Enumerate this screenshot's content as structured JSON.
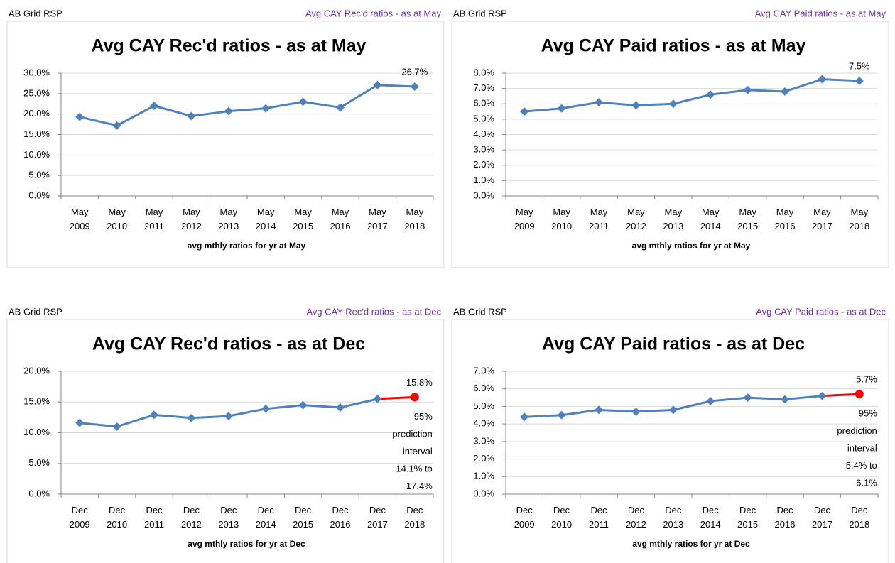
{
  "chart_data": [
    {
      "type": "line",
      "header_left": "AB Grid RSP",
      "header_right": "Avg CAY Rec'd ratios - as at May",
      "title": "Avg CAY Rec'd ratios - as at May",
      "x_label": "avg mthly ratios for yr at May",
      "categories": [
        "May 2009",
        "May 2010",
        "May 2011",
        "May 2012",
        "May 2013",
        "May 2014",
        "May 2015",
        "May 2016",
        "May 2017",
        "May 2018"
      ],
      "values": [
        19.3,
        17.2,
        22.0,
        19.5,
        20.7,
        21.4,
        23.0,
        21.6,
        27.1,
        26.7
      ],
      "value_labels": [
        null,
        null,
        null,
        null,
        null,
        null,
        null,
        null,
        null,
        "26.7%"
      ],
      "color": "#4f81bd",
      "ylim": [
        0,
        30
      ],
      "grid": true,
      "yticks": [
        {
          "value": 0,
          "label": "0.0%"
        },
        {
          "value": 5,
          "label": "5.0%"
        },
        {
          "value": 10,
          "label": "10.0%"
        },
        {
          "value": 15,
          "label": "15.0%"
        },
        {
          "value": 20,
          "label": "20.0%"
        },
        {
          "value": 25,
          "label": "25.0%"
        },
        {
          "value": 30,
          "label": "30.0%"
        }
      ]
    },
    {
      "type": "line",
      "header_left": "AB Grid RSP",
      "header_right": "Avg CAY Paid ratios - as at May",
      "title": "Avg CAY Paid ratios - as at May",
      "x_label": "avg mthly ratios for yr at May",
      "categories": [
        "May 2009",
        "May 2010",
        "May 2011",
        "May 2012",
        "May 2013",
        "May 2014",
        "May 2015",
        "May 2016",
        "May 2017",
        "May 2018"
      ],
      "values": [
        5.5,
        5.7,
        6.1,
        5.9,
        6.0,
        6.6,
        6.9,
        6.8,
        7.6,
        7.5
      ],
      "value_labels": [
        null,
        null,
        null,
        null,
        null,
        null,
        null,
        null,
        null,
        "7.5%"
      ],
      "color": "#4f81bd",
      "ylim": [
        0,
        8
      ],
      "grid": true,
      "yticks": [
        {
          "value": 0,
          "label": "0.0%"
        },
        {
          "value": 1,
          "label": "1.0%"
        },
        {
          "value": 2,
          "label": "2.0%"
        },
        {
          "value": 3,
          "label": "3.0%"
        },
        {
          "value": 4,
          "label": "4.0%"
        },
        {
          "value": 5,
          "label": "5.0%"
        },
        {
          "value": 6,
          "label": "6.0%"
        },
        {
          "value": 7,
          "label": "7.0%"
        },
        {
          "value": 8,
          "label": "8.0%"
        }
      ]
    },
    {
      "type": "line",
      "header_left": "AB Grid RSP",
      "header_right": "Avg CAY Rec'd ratios - as at Dec",
      "title": "Avg CAY Rec'd ratios - as at Dec",
      "x_label": "avg mthly ratios for yr at Dec",
      "categories": [
        "Dec 2009",
        "Dec 2010",
        "Dec 2011",
        "Dec 2012",
        "Dec 2013",
        "Dec 2014",
        "Dec 2015",
        "Dec 2016",
        "Dec 2017",
        "Dec 2018"
      ],
      "values": [
        11.6,
        11.0,
        12.9,
        12.4,
        12.7,
        13.9,
        14.5,
        14.1,
        15.5,
        15.8
      ],
      "value_labels": [
        null,
        null,
        null,
        null,
        null,
        null,
        null,
        null,
        null,
        "15.8%"
      ],
      "color": "#4f81bd",
      "last_color": "#ff0000",
      "ylim": [
        0,
        20
      ],
      "grid": true,
      "annotation": [
        "95%",
        "prediction",
        "interval",
        "14.1% to",
        "17.4%"
      ],
      "yticks": [
        {
          "value": 0,
          "label": "0.0%"
        },
        {
          "value": 5,
          "label": "5.0%"
        },
        {
          "value": 10,
          "label": "10.0%"
        },
        {
          "value": 15,
          "label": "15.0%"
        },
        {
          "value": 20,
          "label": "20.0%"
        }
      ]
    },
    {
      "type": "line",
      "header_left": "AB Grid RSP",
      "header_right": "Avg CAY Paid ratios - as at Dec",
      "title": "Avg CAY Paid ratios - as at Dec",
      "x_label": "avg mthly ratios for yr at Dec",
      "categories": [
        "Dec 2009",
        "Dec 2010",
        "Dec 2011",
        "Dec 2012",
        "Dec 2013",
        "Dec 2014",
        "Dec 2015",
        "Dec 2016",
        "Dec 2017",
        "Dec 2018"
      ],
      "values": [
        4.4,
        4.5,
        4.8,
        4.7,
        4.8,
        5.3,
        5.5,
        5.4,
        5.6,
        5.7
      ],
      "value_labels": [
        null,
        null,
        null,
        null,
        null,
        null,
        null,
        null,
        null,
        "5.7%"
      ],
      "color": "#4f81bd",
      "last_color": "#ff0000",
      "ylim": [
        0,
        7
      ],
      "grid": true,
      "annotation": [
        "95%",
        "prediction",
        "interval",
        "5.4% to",
        "6.1%"
      ],
      "yticks": [
        {
          "value": 0,
          "label": "0.0%"
        },
        {
          "value": 1,
          "label": "1.0%"
        },
        {
          "value": 2,
          "label": "2.0%"
        },
        {
          "value": 3,
          "label": "3.0%"
        },
        {
          "value": 4,
          "label": "4.0%"
        },
        {
          "value": 5,
          "label": "5.0%"
        },
        {
          "value": 6,
          "label": "6.0%"
        },
        {
          "value": 7,
          "label": "7.0%"
        }
      ]
    }
  ]
}
